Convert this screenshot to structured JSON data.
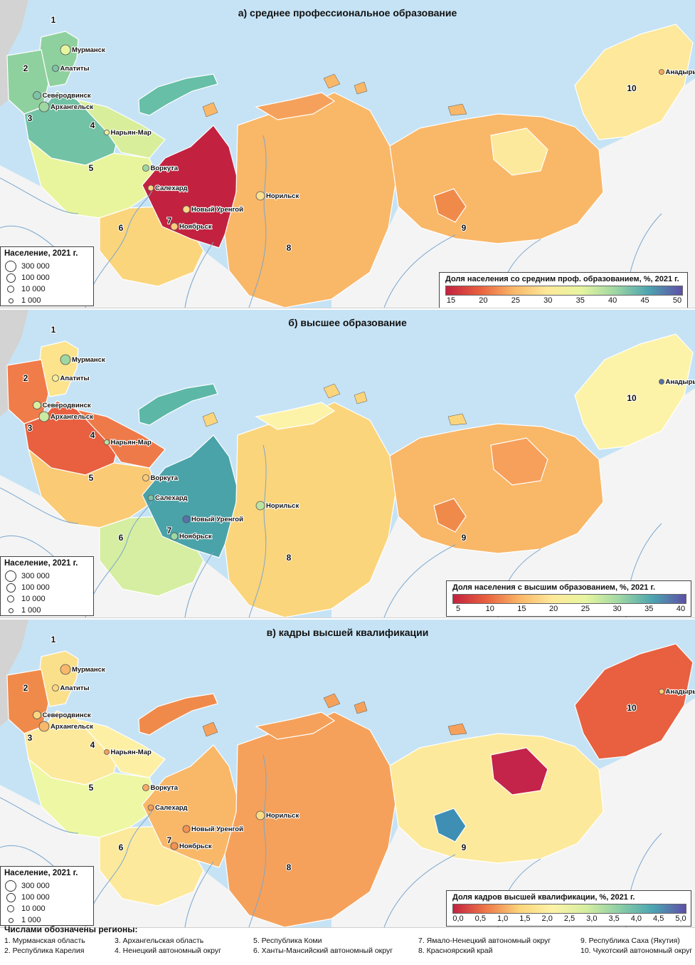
{
  "panels": [
    {
      "title": "а) среднее профессиональное образование",
      "legend_title": "Доля населения со средним проф. образованием, %, 2021 г.",
      "ticks": [
        "15",
        "20",
        "25",
        "30",
        "35",
        "40",
        "45",
        "50"
      ],
      "tick_values": [
        15,
        20,
        25,
        30,
        35,
        40,
        45,
        50
      ],
      "range": [
        15,
        50
      ],
      "region_colors": {
        "murmansk": "#8fd19e",
        "karelia": "#8fd19e",
        "arkhangelsk": "#72c2a5",
        "nenets": "#d8ee9b",
        "komi": "#e9f59d",
        "khmao": "#fbd57c",
        "yanao": "#c2223f",
        "krasnoyarsk": "#f9b768",
        "yakutia": "#f9b768",
        "chukotka": "#fde89b",
        "novaya_zemlya": "#66bfa6",
        "taimyr": "#f5a15b",
        "yakutia_east": "#fde99b",
        "yakutia_center": "#f08a4b"
      },
      "cities": [
        {
          "name": "Мурманск",
          "value": 35
        },
        {
          "name": "Апатиты",
          "value": 42
        },
        {
          "name": "Северодвинск",
          "value": 42
        },
        {
          "name": "Архангельск",
          "value": 40
        },
        {
          "name": "Нарьян-Мар",
          "value": 33
        },
        {
          "name": "Воркута",
          "value": 40
        },
        {
          "name": "Салехард",
          "value": 28
        },
        {
          "name": "Новый Уренгой",
          "value": 28
        },
        {
          "name": "Ноябрьск",
          "value": 27
        },
        {
          "name": "Норильск",
          "value": 29
        },
        {
          "name": "Анадырь",
          "value": 24
        }
      ]
    },
    {
      "title": "б) высшее образование",
      "legend_title": "Доля населения с высшим образованием, %, 2021 г.",
      "ticks": [
        "5",
        "10",
        "15",
        "20",
        "25",
        "30",
        "35",
        "40"
      ],
      "tick_values": [
        5,
        10,
        15,
        20,
        25,
        30,
        35,
        40
      ],
      "range": [
        5,
        40
      ],
      "region_colors": {
        "murmansk": "#fde38c",
        "karelia": "#f07c4a",
        "arkhangelsk": "#e8603f",
        "nenets": "#ee7a49",
        "komi": "#fbca74",
        "khmao": "#d5eea1",
        "yanao": "#49a3a8",
        "krasnoyarsk": "#fbd57c",
        "yakutia": "#f9b768",
        "chukotka": "#fdf3a8",
        "novaya_zemlya": "#5cb7a7",
        "taimyr": "#fdf3a8",
        "yakutia_east": "#f6a05b",
        "yakutia_center": "#f08a4b"
      },
      "cities": [
        {
          "name": "Мурманск",
          "value": 30
        },
        {
          "name": "Апатиты",
          "value": 22
        },
        {
          "name": "Северодвинск",
          "value": 26
        },
        {
          "name": "Архангельск",
          "value": 27
        },
        {
          "name": "Нарьян-Мар",
          "value": 28
        },
        {
          "name": "Воркута",
          "value": 17
        },
        {
          "name": "Салехард",
          "value": 32
        },
        {
          "name": "Новый Уренгой",
          "value": 38
        },
        {
          "name": "Ноябрьск",
          "value": 30
        },
        {
          "name": "Норильск",
          "value": 28
        },
        {
          "name": "Анадырь",
          "value": 38
        }
      ]
    },
    {
      "title": "в) кадры высшей квалификации",
      "legend_title": "Доля кадров высшей квалификации, %, 2021 г.",
      "ticks": [
        "0,0",
        "0,5",
        "1,0",
        "1,5",
        "2,0",
        "2,5",
        "3,0",
        "3,5",
        "4,0",
        "4,5",
        "5,0"
      ],
      "tick_values": [
        0,
        0.5,
        1,
        1.5,
        2,
        2.5,
        3,
        3.5,
        4,
        4.5,
        5
      ],
      "range": [
        0,
        5
      ],
      "region_colors": {
        "murmansk": "#fbe08b",
        "karelia": "#f08a4b",
        "arkhangelsk": "#fde99b",
        "nenets": "#fdf0a5",
        "komi": "#eef7a4",
        "khmao": "#fde99b",
        "yanao": "#f9b768",
        "krasnoyarsk": "#f5a15b",
        "yakutia": "#fde99b",
        "chukotka": "#e8603f",
        "novaya_zemlya": "#f08a4b",
        "taimyr": "#f5a15b",
        "yakutia_east": "#c4234a",
        "yakutia_center": "#3f8fb5"
      },
      "cities": [
        {
          "name": "Мурманск",
          "value": 1.2
        },
        {
          "name": "Апатиты",
          "value": 1.5
        },
        {
          "name": "Северодвинск",
          "value": 1.5
        },
        {
          "name": "Архангельск",
          "value": 1.2
        },
        {
          "name": "Нарьян-Мар",
          "value": 1.0
        },
        {
          "name": "Воркута",
          "value": 1.1
        },
        {
          "name": "Салехард",
          "value": 1.0
        },
        {
          "name": "Новый Уренгой",
          "value": 0.9
        },
        {
          "name": "Ноябрьск",
          "value": 0.9
        },
        {
          "name": "Норильск",
          "value": 1.6
        },
        {
          "name": "Анадырь",
          "value": 1.4
        }
      ]
    }
  ],
  "population_legend": {
    "title": "Население, 2021 г.",
    "items": [
      "300 000",
      "100 000",
      "10 000",
      "1 000"
    ]
  },
  "region_numbers": [
    "1",
    "2",
    "3",
    "4",
    "5",
    "6",
    "7",
    "8",
    "9",
    "10"
  ],
  "footnote": {
    "title": "Числами обозначены регионы:",
    "items": [
      "1. Мурманская область",
      "3. Архангельская область",
      "5. Республика Коми",
      "7. Ямало-Ненецкий автономный округ",
      "9. Республика Саха (Якутия)",
      "2. Республика Карелия",
      "4. Ненецкий автономный округ",
      "6. Ханты-Мансийский автономный округ",
      "8. Красноярский край",
      "10. Чукотский автономный округ"
    ]
  },
  "colors": {
    "sea": "#c6e3f5",
    "land_other": "#f4f4f4",
    "foreign": "#d3d3d3",
    "border": "#ffffff",
    "river": "#7aa7cf",
    "ramp_education": [
      "#c2223f",
      "#e8603f",
      "#f9b768",
      "#fde99b",
      "#e6f5a0",
      "#9fd7a3",
      "#4da4b0",
      "#5f4fa6"
    ],
    "ramp_qualification": [
      "#c2223f",
      "#ee7a49",
      "#fbd57c",
      "#fdf3a8",
      "#d5eea1",
      "#8ccea5",
      "#4ba5b2",
      "#5f4fa6"
    ]
  }
}
